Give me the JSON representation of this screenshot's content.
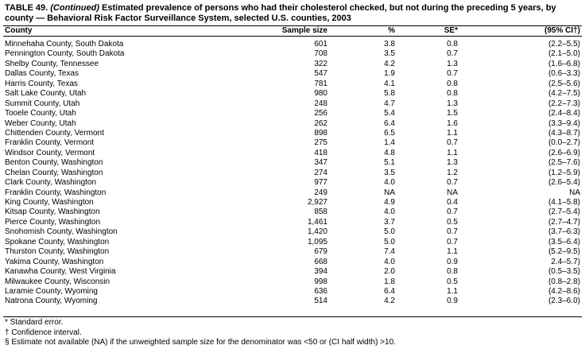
{
  "title": {
    "label": "TABLE 49.",
    "continued": "(Continued)",
    "text": "Estimated prevalence of persons who had their cholesterol checked, but not during the preceding 5 years, by county — Behavioral Risk Factor Surveillance System, selected U.S. counties, 2003"
  },
  "table": {
    "headers": [
      "County",
      "Sample size",
      "%",
      "SE*",
      "(95% CI†)"
    ],
    "rows": [
      [
        "Minnehaha County, South Dakota",
        "601",
        "3.8",
        "0.8",
        "(2.2–5.5)"
      ],
      [
        "Pennington County, South Dakota",
        "708",
        "3.5",
        "0.7",
        "(2.1–5.0)"
      ],
      [
        "Shelby County, Tennessee",
        "322",
        "4.2",
        "1.3",
        "(1.6–6.8)"
      ],
      [
        "Dallas County, Texas",
        "547",
        "1.9",
        "0.7",
        "(0.6–3.3)"
      ],
      [
        "Harris County, Texas",
        "781",
        "4.1",
        "0.8",
        "(2.5–5.6)"
      ],
      [
        "Salt Lake County, Utah",
        "980",
        "5.8",
        "0.8",
        "(4.2–7.5)"
      ],
      [
        "Summit County, Utah",
        "248",
        "4.7",
        "1.3",
        "(2.2–7.3)"
      ],
      [
        "Tooele County, Utah",
        "256",
        "5.4",
        "1.5",
        "(2.4–8.4)"
      ],
      [
        "Weber County, Utah",
        "262",
        "6.4",
        "1.6",
        "(3.3–9.4)"
      ],
      [
        "Chittenden County, Vermont",
        "898",
        "6.5",
        "1.1",
        "(4.3–8.7)"
      ],
      [
        "Franklin County, Vermont",
        "275",
        "1.4",
        "0.7",
        "(0.0–2.7)"
      ],
      [
        "Windsor County, Vermont",
        "418",
        "4.8",
        "1.1",
        "(2.6–6.9)"
      ],
      [
        "Benton County, Washington",
        "347",
        "5.1",
        "1.3",
        "(2.5–7.6)"
      ],
      [
        "Chelan County, Washington",
        "274",
        "3.5",
        "1.2",
        "(1.2–5.9)"
      ],
      [
        "Clark County, Washington",
        "977",
        "4.0",
        "0.7",
        "(2.6–5.4)"
      ],
      [
        "Franklin County, Washington",
        "249",
        "NA",
        "NA",
        "NA"
      ],
      [
        "King County, Washington",
        "2,927",
        "4.9",
        "0.4",
        "(4.1–5.8)"
      ],
      [
        "Kitsap County, Washington",
        "858",
        "4.0",
        "0.7",
        "(2.7–5.4)"
      ],
      [
        "Pierce County, Washington",
        "1,461",
        "3.7",
        "0.5",
        "(2.7–4.7)"
      ],
      [
        "Snohomish County, Washington",
        "1,420",
        "5.0",
        "0.7",
        "(3.7–6.3)"
      ],
      [
        "Spokane County, Washington",
        "1,095",
        "5.0",
        "0.7",
        "(3.5–6.4)"
      ],
      [
        "Thurston County, Washington",
        "679",
        "7.4",
        "1.1",
        "(5.2–9.5)"
      ],
      [
        "Yakima County, Washington",
        "668",
        "4.0",
        "0.9",
        "2.4–5.7)"
      ],
      [
        "Kanawha County, West Virginia",
        "394",
        "2.0",
        "0.8",
        "(0.5–3.5)"
      ],
      [
        "Milwaukee County, Wisconsin",
        "998",
        "1.8",
        "0.5",
        "(0.8–2.8)"
      ],
      [
        "Laramie County, Wyoming",
        "636",
        "6.4",
        "1.1",
        "(4.2–8.6)"
      ],
      [
        "Natrona County, Wyoming",
        "514",
        "4.2",
        "0.9",
        "(2.3–6.0)"
      ]
    ]
  },
  "footnotes": [
    "* Standard error.",
    "† Confidence interval.",
    "§ Estimate not available (NA) if the unweighted sample size for the denominator was <50 or (CI half width) >10."
  ]
}
